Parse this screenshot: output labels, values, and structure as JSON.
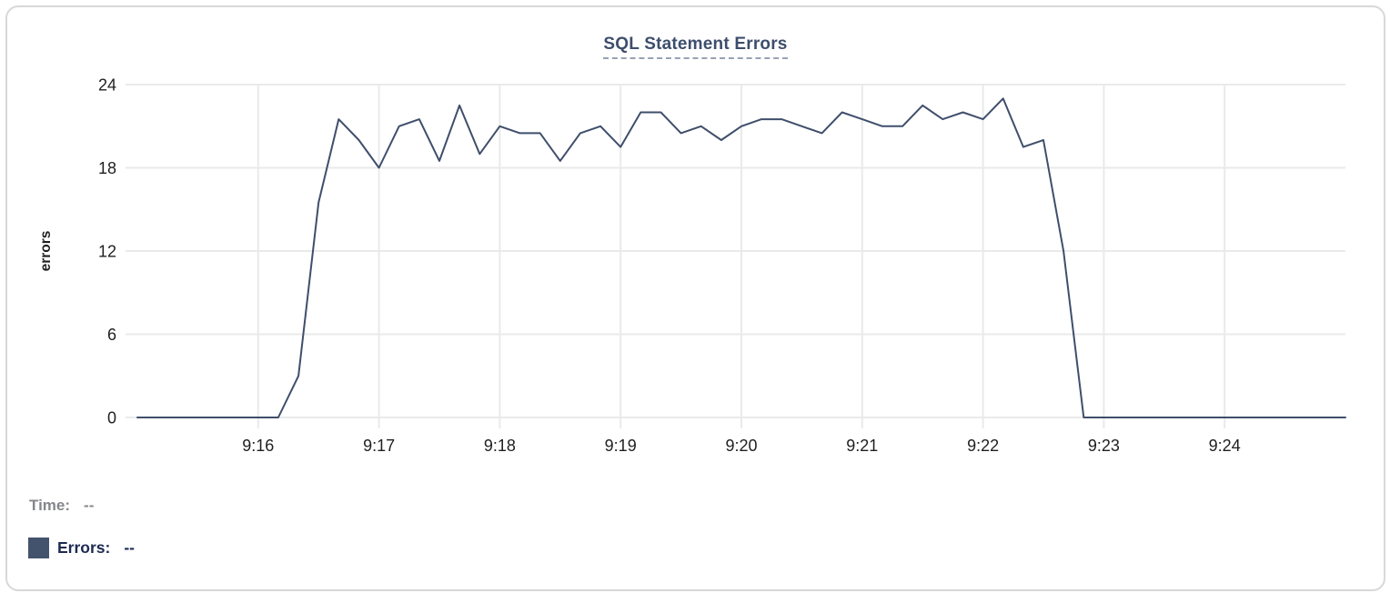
{
  "chart_data": {
    "type": "line",
    "title": "SQL Statement Errors",
    "xlabel": "",
    "ylabel": "errors",
    "x_start_time": "9:15:00",
    "x_end_time": "9:25:00",
    "sample_interval_seconds": 10,
    "xtick_labels": [
      "9:16",
      "9:17",
      "9:18",
      "9:19",
      "9:20",
      "9:21",
      "9:22",
      "9:23",
      "9:24"
    ],
    "yticks": [
      0,
      6,
      12,
      18,
      24
    ],
    "ylim": [
      0,
      24
    ],
    "grid": true,
    "legend_position": "bottom-left",
    "series": [
      {
        "name": "Errors",
        "color": "#3f4e6b",
        "values": [
          0,
          0,
          0,
          0,
          0,
          0,
          0,
          0,
          3,
          15.5,
          21.5,
          20,
          18,
          21,
          21.5,
          18.5,
          22.5,
          19,
          21,
          20.5,
          20.5,
          18.5,
          20.5,
          21,
          19.5,
          22,
          22,
          20.5,
          21,
          20,
          21,
          21.5,
          21.5,
          21,
          20.5,
          22,
          21.5,
          21,
          21,
          22.5,
          21.5,
          22,
          21.5,
          23,
          19.5,
          20,
          12,
          0,
          0,
          0,
          0,
          0,
          0,
          0,
          0,
          0,
          0,
          0,
          0,
          0,
          0
        ]
      }
    ]
  },
  "legend": {
    "time_label": "Time:",
    "time_value": "--",
    "errors_label": "Errors:",
    "errors_value": "--",
    "swatch_color": "#44536d"
  },
  "colors": {
    "title": "#3d4e6c",
    "title_underline": "#97a1b4",
    "axis_text": "#1f1f1f",
    "grid": "#eaeaea",
    "line": "#3f4e6b",
    "time_text": "#85878a",
    "errors_text": "#1d2a52",
    "card_border": "#d8d8d8"
  }
}
